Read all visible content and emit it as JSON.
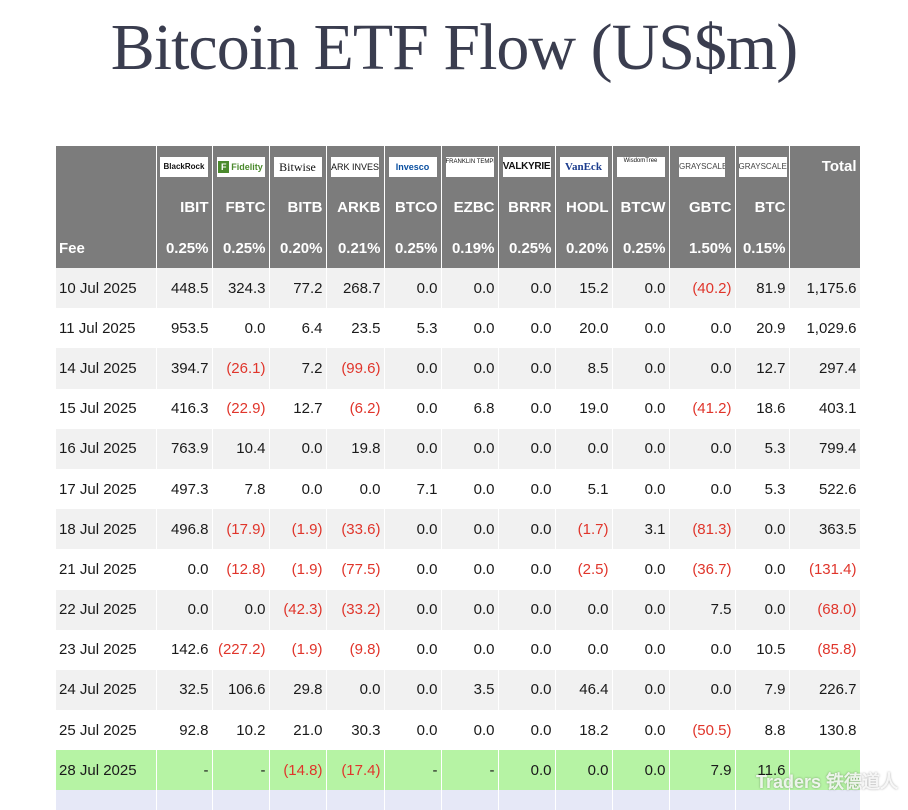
{
  "title": "Bitcoin ETF Flow (US$m)",
  "issuers": [
    {
      "name": "BlackRock",
      "icon": "blackrock-logo"
    },
    {
      "name": "Fidelity",
      "icon": "fidelity-logo"
    },
    {
      "name": "Bitwise",
      "icon": "bitwise-logo"
    },
    {
      "name": "ARK INVEST",
      "icon": "ark-invest-logo"
    },
    {
      "name": "Invesco",
      "icon": "invesco-logo"
    },
    {
      "name": "FRANKLIN TEMPLETON",
      "icon": "franklin-templeton-logo"
    },
    {
      "name": "VALKYRIE",
      "icon": "valkyrie-logo"
    },
    {
      "name": "VanEck",
      "icon": "vaneck-logo"
    },
    {
      "name": "WisdomTree",
      "icon": "wisdomtree-logo"
    },
    {
      "name": "GRAYSCALE",
      "icon": "grayscale-logo"
    },
    {
      "name": "GRAYSCALE",
      "icon": "grayscale-logo"
    }
  ],
  "total_label": "Total",
  "tickers": [
    "IBIT",
    "FBTC",
    "BITB",
    "ARKB",
    "BTCO",
    "EZBC",
    "BRRR",
    "HODL",
    "BTCW",
    "GBTC",
    "BTC"
  ],
  "fee_label": "Fee",
  "fees": [
    "0.25%",
    "0.25%",
    "0.20%",
    "0.21%",
    "0.25%",
    "0.19%",
    "0.25%",
    "0.20%",
    "0.25%",
    "1.50%",
    "0.15%"
  ],
  "rows": [
    {
      "date": "10 Jul 2025",
      "values": [
        "448.5",
        "324.3",
        "77.2",
        "268.7",
        "0.0",
        "0.0",
        "0.0",
        "15.2",
        "0.0",
        "(40.2)",
        "81.9"
      ],
      "total": "1,175.6"
    },
    {
      "date": "11 Jul 2025",
      "values": [
        "953.5",
        "0.0",
        "6.4",
        "23.5",
        "5.3",
        "0.0",
        "0.0",
        "20.0",
        "0.0",
        "0.0",
        "20.9"
      ],
      "total": "1,029.6"
    },
    {
      "date": "14 Jul 2025",
      "values": [
        "394.7",
        "(26.1)",
        "7.2",
        "(99.6)",
        "0.0",
        "0.0",
        "0.0",
        "8.5",
        "0.0",
        "0.0",
        "12.7"
      ],
      "total": "297.4"
    },
    {
      "date": "15 Jul 2025",
      "values": [
        "416.3",
        "(22.9)",
        "12.7",
        "(6.2)",
        "0.0",
        "6.8",
        "0.0",
        "19.0",
        "0.0",
        "(41.2)",
        "18.6"
      ],
      "total": "403.1"
    },
    {
      "date": "16 Jul 2025",
      "values": [
        "763.9",
        "10.4",
        "0.0",
        "19.8",
        "0.0",
        "0.0",
        "0.0",
        "0.0",
        "0.0",
        "0.0",
        "5.3"
      ],
      "total": "799.4"
    },
    {
      "date": "17 Jul 2025",
      "values": [
        "497.3",
        "7.8",
        "0.0",
        "0.0",
        "7.1",
        "0.0",
        "0.0",
        "5.1",
        "0.0",
        "0.0",
        "5.3"
      ],
      "total": "522.6"
    },
    {
      "date": "18 Jul 2025",
      "values": [
        "496.8",
        "(17.9)",
        "(1.9)",
        "(33.6)",
        "0.0",
        "0.0",
        "0.0",
        "(1.7)",
        "3.1",
        "(81.3)",
        "0.0"
      ],
      "total": "363.5"
    },
    {
      "date": "21 Jul 2025",
      "values": [
        "0.0",
        "(12.8)",
        "(1.9)",
        "(77.5)",
        "0.0",
        "0.0",
        "0.0",
        "(2.5)",
        "0.0",
        "(36.7)",
        "0.0"
      ],
      "total": "(131.4)"
    },
    {
      "date": "22 Jul 2025",
      "values": [
        "0.0",
        "0.0",
        "(42.3)",
        "(33.2)",
        "0.0",
        "0.0",
        "0.0",
        "0.0",
        "0.0",
        "7.5",
        "0.0"
      ],
      "total": "(68.0)"
    },
    {
      "date": "23 Jul 2025",
      "values": [
        "142.6",
        "(227.2)",
        "(1.9)",
        "(9.8)",
        "0.0",
        "0.0",
        "0.0",
        "0.0",
        "0.0",
        "0.0",
        "10.5"
      ],
      "total": "(85.8)"
    },
    {
      "date": "24 Jul 2025",
      "values": [
        "32.5",
        "106.6",
        "29.8",
        "0.0",
        "0.0",
        "3.5",
        "0.0",
        "46.4",
        "0.0",
        "0.0",
        "7.9"
      ],
      "total": "226.7"
    },
    {
      "date": "25 Jul 2025",
      "values": [
        "92.8",
        "10.2",
        "21.0",
        "30.3",
        "0.0",
        "0.0",
        "0.0",
        "18.2",
        "0.0",
        "(50.5)",
        "8.8"
      ],
      "total": "130.8"
    },
    {
      "date": "28 Jul 2025",
      "values": [
        "-",
        "-",
        "(14.8)",
        "(17.4)",
        "-",
        "-",
        "0.0",
        "0.0",
        "0.0",
        "7.9",
        "11.6"
      ],
      "total": "",
      "highlight": true
    }
  ],
  "watermark": "Traders 铁德道人",
  "colors": {
    "header_bg": "#7c7c7c",
    "negative": "#e0352b",
    "highlight_row": "#b6f3a4",
    "title": "#3a3d4f"
  }
}
